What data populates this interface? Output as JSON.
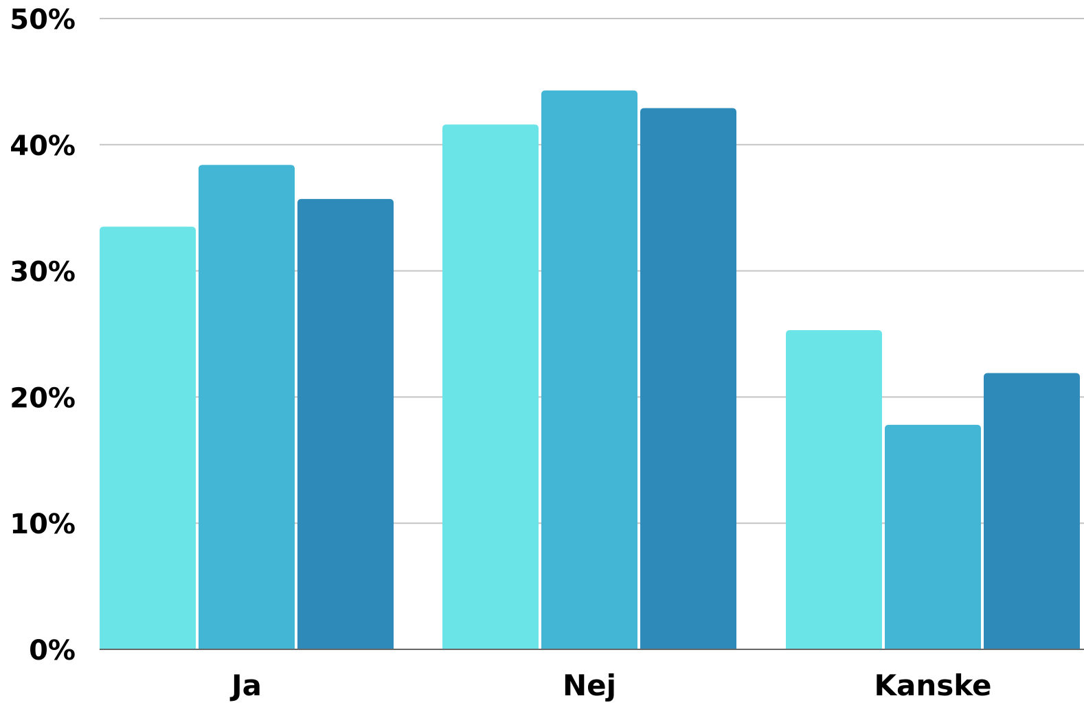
{
  "chart_data": {
    "type": "bar",
    "categories": [
      "Ja",
      "Nej",
      "Kanske"
    ],
    "series": [
      {
        "values": [
          33.5,
          41.6,
          25.3
        ]
      },
      {
        "values": [
          38.4,
          44.3,
          17.8
        ]
      },
      {
        "values": [
          35.7,
          42.9,
          21.9
        ]
      }
    ],
    "colors": [
      "#6be4e8",
      "#43b6d6",
      "#2e8bb9"
    ],
    "yticks": [
      "0%",
      "10%",
      "20%",
      "30%",
      "40%",
      "50%"
    ],
    "ytick_values": [
      0,
      10,
      20,
      30,
      40,
      50
    ],
    "ylim": [
      0,
      50
    ],
    "grid": true,
    "legend": "none"
  }
}
